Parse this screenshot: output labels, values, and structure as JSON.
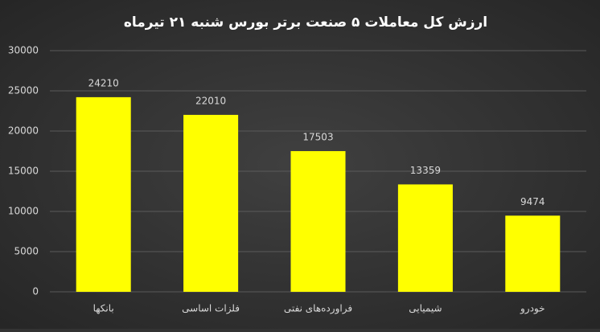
{
  "chart_data": {
    "type": "bar",
    "title": "ارزش کل معاملات ۵ صنعت برتر بورس شنبه ۲۱ تیرماه",
    "categories": [
      "بانکها",
      "فلزات اساسی",
      "فراورده‌های نفتی",
      "شیمیایی",
      "خودرو"
    ],
    "values": [
      24210,
      22010,
      17503,
      13359,
      9474
    ],
    "color": "#ffff00",
    "ylim": [
      0,
      30000
    ],
    "yticks": [
      0,
      5000,
      10000,
      15000,
      20000,
      25000,
      30000
    ],
    "grid": true
  }
}
